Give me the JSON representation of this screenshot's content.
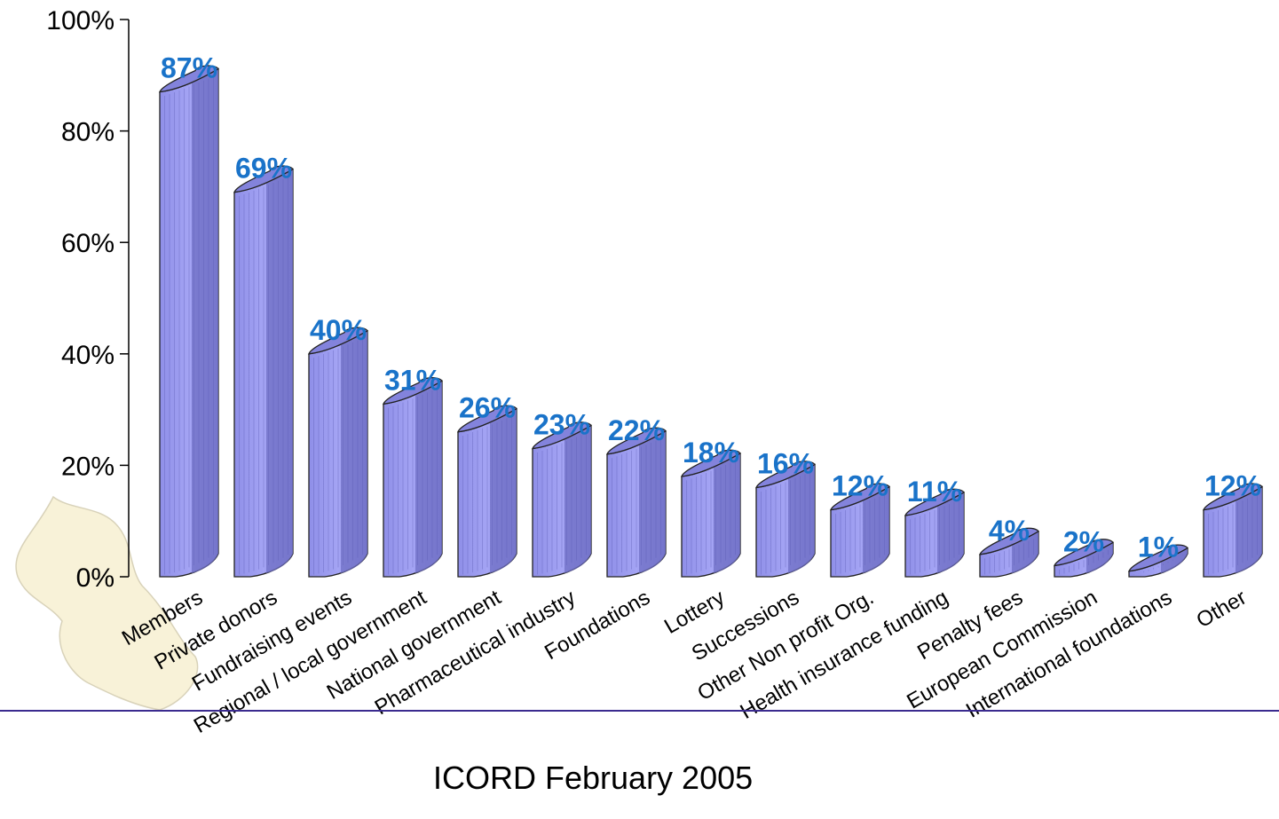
{
  "footer": "ICORD February 2005",
  "colors": {
    "bar_face": "#9b9bf0",
    "bar_side": "#6f6fc4",
    "bar_top": "#8383dc",
    "label": "#1a73c9",
    "footer_line": "#3b2b8f"
  },
  "chart_data": {
    "type": "bar",
    "title": "",
    "xlabel": "",
    "ylabel": "",
    "ylim": [
      0,
      100
    ],
    "yticks": [
      "0%",
      "20%",
      "40%",
      "60%",
      "80%",
      "100%"
    ],
    "categories": [
      "Members",
      "Private donors",
      "Fundraising events",
      "Regional / local government",
      "National government",
      "Pharmaceutical industry",
      "Foundations",
      "Lottery",
      "Successions",
      "Other Non profit Org.",
      "Health insurance funding",
      "Penalty fees",
      "European Commission",
      "International foundations",
      "Other"
    ],
    "values": [
      87,
      69,
      40,
      31,
      26,
      23,
      22,
      18,
      16,
      12,
      11,
      4,
      2,
      1,
      12
    ],
    "data_labels": [
      "87%",
      "69%",
      "40%",
      "31%",
      "26%",
      "23%",
      "22%",
      "18%",
      "16%",
      "12%",
      "11%",
      "4%",
      "2%",
      "1%",
      "12%"
    ],
    "grid": false
  }
}
